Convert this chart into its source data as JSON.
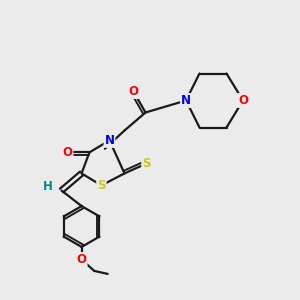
{
  "bg_color": "#ebebeb",
  "bond_color": "#1a1a1a",
  "atom_colors": {
    "O": "#ff0000",
    "N": "#0000ff",
    "S": "#cccc00",
    "H": "#008b8b",
    "C": "#1a1a1a"
  },
  "figsize": [
    3.0,
    3.0
  ],
  "dpi": 100,
  "lw": 1.6,
  "fontsize": 8.5
}
